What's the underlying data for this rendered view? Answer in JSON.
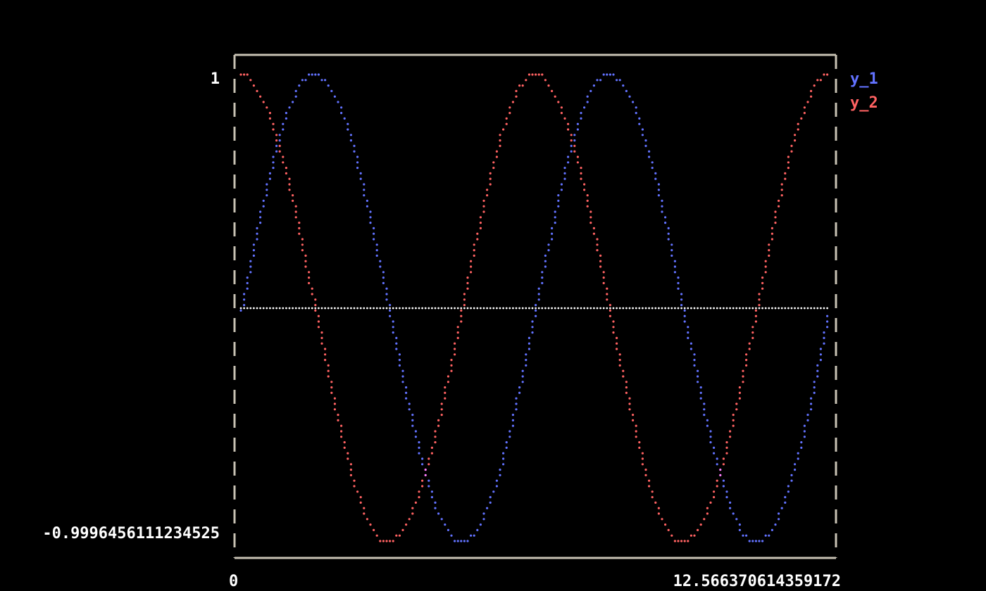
{
  "chart_data": {
    "type": "line",
    "xlim": [
      0,
      12.566370614359172
    ],
    "ylim": [
      -0.9996456111234525,
      1
    ],
    "x_tick_labels": [
      "0",
      "12.566370614359172"
    ],
    "y_tick_labels": [
      "1",
      "-0.9996456111234525"
    ],
    "legend_position": "right",
    "zero_line": true,
    "x": [
      0,
      0.262,
      0.524,
      0.785,
      1.047,
      1.309,
      1.571,
      1.833,
      2.094,
      2.356,
      2.618,
      2.88,
      3.142,
      3.403,
      3.665,
      3.927,
      4.189,
      4.451,
      4.712,
      4.974,
      5.236,
      5.498,
      5.76,
      6.021,
      6.283,
      6.545,
      6.807,
      7.069,
      7.33,
      7.592,
      7.854,
      8.116,
      8.378,
      8.639,
      8.901,
      9.163,
      9.425,
      9.687,
      9.948,
      10.21,
      10.472,
      10.734,
      10.996,
      11.257,
      11.519,
      11.781,
      12.043,
      12.305,
      12.566
    ],
    "series": [
      {
        "name": "y_1",
        "color": "#6272ff",
        "values": [
          0,
          0.259,
          0.5,
          0.707,
          0.866,
          0.966,
          1,
          0.966,
          0.866,
          0.707,
          0.5,
          0.259,
          0,
          -0.259,
          -0.5,
          -0.707,
          -0.866,
          -0.966,
          -1,
          -0.966,
          -0.866,
          -0.707,
          -0.5,
          -0.259,
          0,
          0.259,
          0.5,
          0.707,
          0.866,
          0.966,
          1,
          0.966,
          0.866,
          0.707,
          0.5,
          0.259,
          0,
          -0.259,
          -0.5,
          -0.707,
          -0.866,
          -0.966,
          -1,
          -0.966,
          -0.866,
          -0.707,
          -0.5,
          -0.259,
          0
        ]
      },
      {
        "name": "y_2",
        "color": "#ff6262",
        "values": [
          1,
          0.966,
          0.866,
          0.707,
          0.5,
          0.259,
          0,
          -0.259,
          -0.5,
          -0.707,
          -0.866,
          -0.966,
          -1,
          -0.966,
          -0.866,
          -0.707,
          -0.5,
          -0.259,
          0,
          0.259,
          0.5,
          0.707,
          0.866,
          0.966,
          1,
          0.966,
          0.866,
          0.707,
          0.5,
          0.259,
          0,
          -0.259,
          -0.5,
          -0.707,
          -0.866,
          -0.966,
          -1,
          -0.966,
          -0.866,
          -0.707,
          -0.5,
          -0.259,
          0,
          0.259,
          0.5,
          0.707,
          0.866,
          0.966,
          1
        ]
      }
    ]
  },
  "colors": {
    "frame": "#c8c2b4",
    "overlap": "#ff80ff",
    "zero_line": "#ffffff"
  }
}
